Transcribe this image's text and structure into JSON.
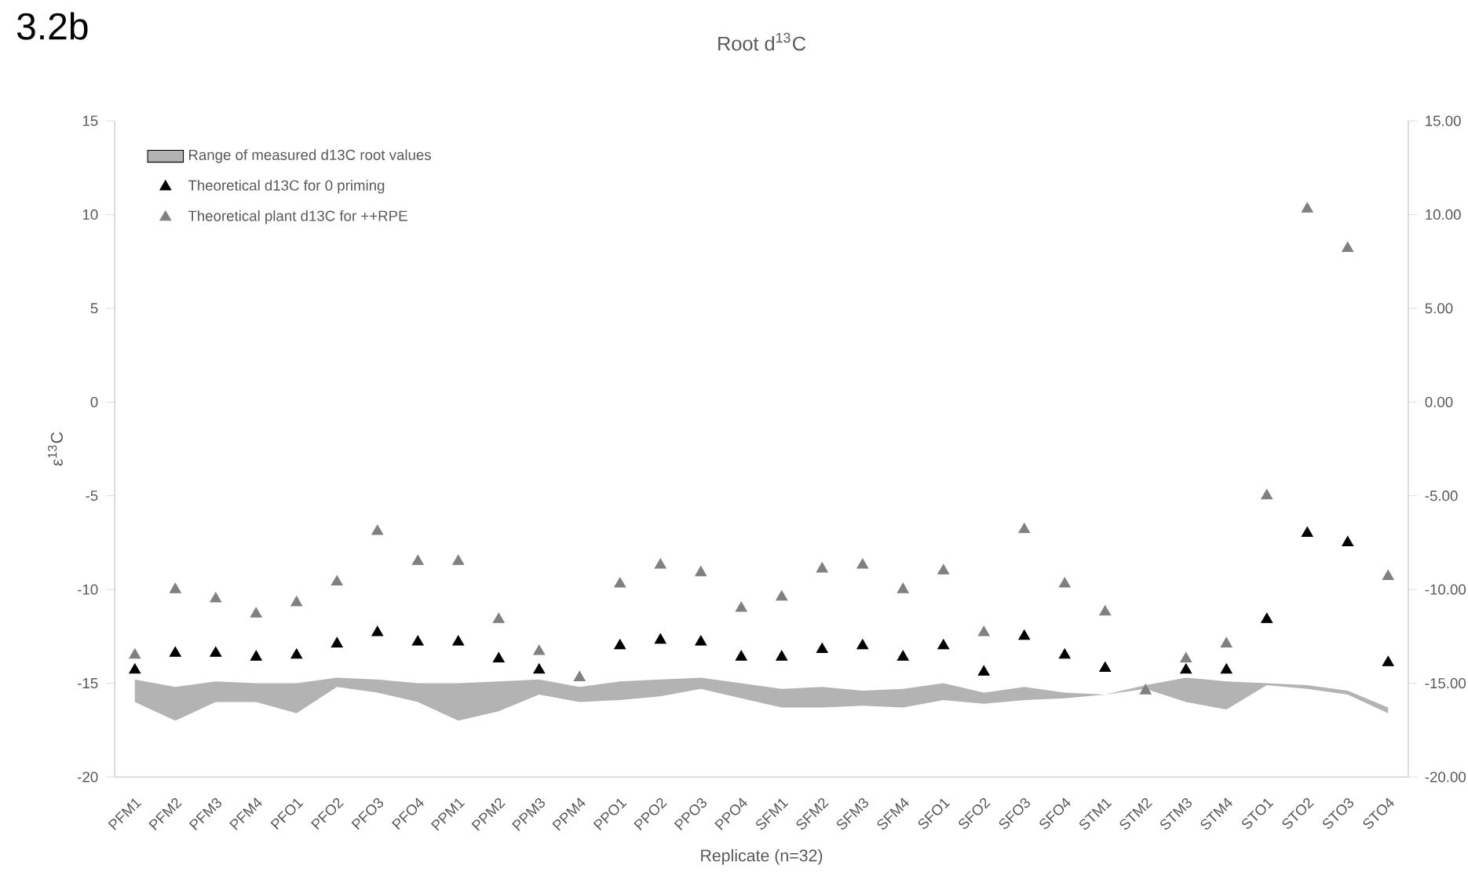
{
  "chart_data": {
    "type": "scatter",
    "title": "Root d$^{13}$C",
    "annotations": [
      "3.2b"
    ],
    "xlabel": "Replicate (n=32)",
    "ylabel": "ε$^{13}$C",
    "categories": [
      "PFM1",
      "PFM2",
      "PFM3",
      "PFM4",
      "PFO1",
      "PFO2",
      "PFO3",
      "PFO4",
      "PPM1",
      "PPM2",
      "PPM3",
      "PPM4",
      "PPO1",
      "PPO2",
      "PPO3",
      "PPO4",
      "SFM1",
      "SFM2",
      "SFM3",
      "SFM4",
      "SFO1",
      "SFO2",
      "SFO3",
      "SFO4",
      "STM1",
      "STM2",
      "STM3",
      "STM4",
      "STO1",
      "STO2",
      "STO3",
      "STO4"
    ],
    "series": [
      {
        "name": "Range of measured d13C root values",
        "type": "line",
        "color": "#b3b3b3",
        "values": [
          null,
          null,
          null,
          null,
          null,
          null,
          null,
          null,
          null,
          null,
          null,
          null,
          null,
          null,
          null,
          null,
          null,
          null,
          null,
          null,
          null,
          null,
          null,
          null,
          null,
          null,
          null,
          null,
          null,
          null,
          null,
          null
        ],
        "lower": [
          -16.0,
          -17.0,
          -16.0,
          -16.0,
          -16.6,
          -15.2,
          -15.5,
          -16.0,
          -17.0,
          -16.5,
          -15.6,
          -16.0,
          -15.9,
          -15.7,
          -15.3,
          -15.8,
          -16.3,
          -16.3,
          -16.2,
          -16.3,
          -15.9,
          -16.1,
          -15.9,
          -15.8,
          -15.6,
          -15.3,
          -16.0,
          -16.4,
          -15.1,
          -15.3,
          -15.6,
          -16.6
        ],
        "upper": [
          -14.8,
          -15.2,
          -14.9,
          -15.0,
          -15.0,
          -14.7,
          -14.8,
          -15.0,
          -15.0,
          -14.9,
          -14.8,
          -15.2,
          -14.9,
          -14.8,
          -14.7,
          -15.0,
          -15.3,
          -15.2,
          -15.4,
          -15.3,
          -15.0,
          -15.5,
          -15.2,
          -15.5,
          -15.6,
          -15.1,
          -14.7,
          -14.9,
          -15.0,
          -15.1,
          -15.4,
          -16.3
        ]
      },
      {
        "name": "Theoretical d13C for 0 priming",
        "color": "#000000",
        "values": [
          -14.3,
          -13.4,
          -13.4,
          -13.6,
          -13.5,
          -12.9,
          -12.3,
          -12.8,
          -12.8,
          -13.7,
          -14.3,
          null,
          -13.0,
          -12.7,
          -12.8,
          -13.6,
          -13.6,
          -13.2,
          -13.0,
          -13.6,
          -13.0,
          -14.4,
          -12.5,
          -13.5,
          -14.2,
          null,
          -14.3,
          -14.3,
          -11.6,
          -7.0,
          -7.5,
          -13.9
        ]
      },
      {
        "name": "Theoretical plant d13C for ++RPE",
        "color": "#808080",
        "values": [
          -13.5,
          -10.0,
          -10.5,
          -11.3,
          -10.7,
          -9.6,
          -6.9,
          -8.5,
          -8.5,
          -11.6,
          -13.3,
          -14.7,
          -9.7,
          -8.7,
          -9.1,
          -11.0,
          -10.4,
          -8.9,
          -8.7,
          -10.0,
          -9.0,
          -12.3,
          -6.8,
          -9.7,
          -11.2,
          -15.4,
          -13.7,
          -12.9,
          -5.0,
          10.3,
          8.2,
          -9.3
        ]
      }
    ],
    "ylim": [
      -20,
      15
    ],
    "yticks": [
      -20,
      -15,
      -10,
      -5,
      0,
      5,
      10,
      15
    ],
    "y2lim": [
      -20,
      15
    ],
    "y2ticks": [
      {
        "value": -20,
        "label": "-20.00"
      },
      {
        "value": -15,
        "label": "-15.00"
      },
      {
        "value": -10,
        "label": "-10.00"
      },
      {
        "value": -5,
        "label": "-5.00"
      },
      {
        "value": 0,
        "label": "0.00"
      },
      {
        "value": 5,
        "label": "5.00"
      },
      {
        "value": 10,
        "label": "10.00"
      },
      {
        "value": 15,
        "label": "15.00"
      }
    ],
    "legend": "top left",
    "marker": "triangle",
    "grid": false
  }
}
